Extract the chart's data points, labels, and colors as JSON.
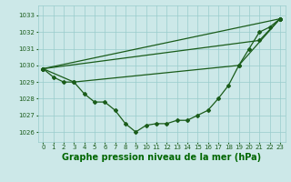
{
  "title": "Graphe pression niveau de la mer (hPa)",
  "background_color": "#cce8e8",
  "grid_color": "#99cccc",
  "line_color": "#1a5c1a",
  "x_labels": [
    "0",
    "1",
    "2",
    "3",
    "4",
    "5",
    "6",
    "7",
    "8",
    "9",
    "10",
    "11",
    "12",
    "13",
    "14",
    "15",
    "16",
    "17",
    "18",
    "19",
    "20",
    "21",
    "22",
    "23"
  ],
  "xlim": [
    -0.5,
    23.5
  ],
  "ylim": [
    1025.4,
    1033.6
  ],
  "yticks": [
    1026,
    1027,
    1028,
    1029,
    1030,
    1031,
    1032,
    1033
  ],
  "series0": [
    1029.8,
    1029.3,
    1029.0,
    1029.0,
    1028.3,
    1027.8,
    1027.8,
    1027.3,
    1026.5,
    1026.0,
    1026.4,
    1026.5,
    1026.5,
    1026.7,
    1026.7,
    1027.0,
    1027.3,
    1028.0,
    1028.8,
    1030.0,
    1031.0,
    1032.0,
    1032.3,
    1032.8
  ],
  "line1_x": [
    0,
    23
  ],
  "line1_y": [
    1029.8,
    1032.8
  ],
  "line2_x": [
    0,
    21,
    23
  ],
  "line2_y": [
    1029.8,
    1031.5,
    1032.8
  ],
  "line3_x": [
    0,
    3,
    19,
    23
  ],
  "line3_y": [
    1029.8,
    1029.0,
    1030.0,
    1032.8
  ],
  "lw": 0.9,
  "ms": 2.0,
  "title_fontsize": 7,
  "tick_fontsize": 5,
  "title_color": "#1a5c1a",
  "tick_color": "#1a5c1a",
  "label_bottom_color": "#006600"
}
